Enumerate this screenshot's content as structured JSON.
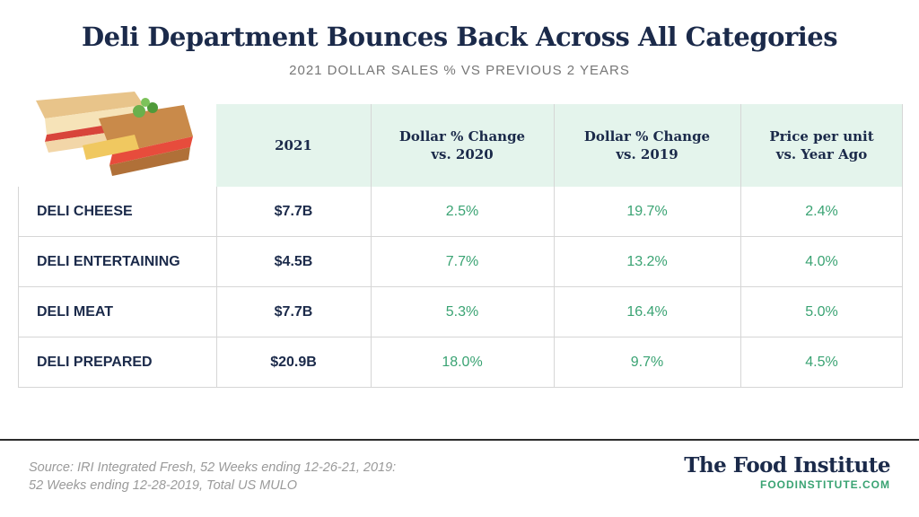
{
  "header": {
    "title": "Deli Department Bounces Back Across All Categories",
    "subtitle": "2021 DOLLAR SALES %  VS PREVIOUS 2 YEARS"
  },
  "table": {
    "columns": [
      "2021",
      "Dollar % Change\nvs. 2020",
      "Dollar % Change\nvs. 2019",
      "Price per unit\nvs.  Year Ago"
    ],
    "rows": [
      [
        "DELI CHEESE",
        "$7.7B",
        "2.5%",
        "19.7%",
        "2.4%"
      ],
      [
        "DELI ENTERTAINING",
        "$4.5B",
        "7.7%",
        "13.2%",
        "4.0%"
      ],
      [
        "DELI MEAT",
        "$7.7B",
        "5.3%",
        "16.4%",
        "5.0%"
      ],
      [
        "DELI PREPARED",
        "$20.9B",
        "18.0%",
        "9.7%",
        "4.5%"
      ]
    ]
  },
  "footer": {
    "source": "Source: IRI Integrated Fresh, 52 Weeks ending 12-26-21, 2019:\n52 Weeks ending 12-28-2019, Total US MULO",
    "brand": "The Food Institute",
    "url": "FOODINSTITUTE.COM"
  }
}
